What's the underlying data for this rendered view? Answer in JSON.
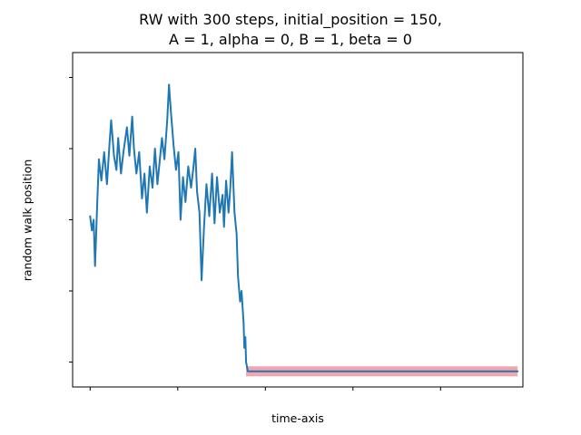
{
  "chart_data": {
    "type": "line",
    "title_lines": [
      "RW with 300 steps, initial_position = 150,",
      "A = 1, alpha = 0, B = 1, beta = 0"
    ],
    "xlabel": "time-axis",
    "ylabel": "random walk position",
    "xlim": [
      -0.5,
      12.35
    ],
    "ylim": [
      -0.35,
      4.35
    ],
    "x_ticks": [
      0,
      2.5,
      5,
      7.5,
      10
    ],
    "y_ticks": [
      0,
      1,
      2,
      3,
      4
    ],
    "tick_labels_visible": false,
    "grid": false,
    "series": [
      {
        "color": "#1f77b4",
        "values": [
          [
            0.0,
            2.05
          ],
          [
            0.05,
            1.85
          ],
          [
            0.1,
            2.0
          ],
          [
            0.14,
            1.35
          ],
          [
            0.2,
            2.2
          ],
          [
            0.25,
            2.85
          ],
          [
            0.32,
            2.55
          ],
          [
            0.4,
            2.95
          ],
          [
            0.48,
            2.5
          ],
          [
            0.55,
            3.05
          ],
          [
            0.6,
            3.4
          ],
          [
            0.68,
            2.9
          ],
          [
            0.75,
            2.7
          ],
          [
            0.8,
            3.15
          ],
          [
            0.88,
            2.65
          ],
          [
            0.95,
            2.95
          ],
          [
            1.05,
            3.3
          ],
          [
            1.12,
            2.9
          ],
          [
            1.2,
            3.45
          ],
          [
            1.25,
            3.0
          ],
          [
            1.32,
            2.65
          ],
          [
            1.4,
            2.95
          ],
          [
            1.48,
            2.3
          ],
          [
            1.55,
            2.65
          ],
          [
            1.62,
            2.1
          ],
          [
            1.7,
            2.75
          ],
          [
            1.78,
            2.45
          ],
          [
            1.85,
            3.0
          ],
          [
            1.92,
            2.5
          ],
          [
            2.0,
            2.9
          ],
          [
            2.05,
            3.15
          ],
          [
            2.12,
            2.85
          ],
          [
            2.2,
            3.4
          ],
          [
            2.25,
            3.9
          ],
          [
            2.3,
            3.55
          ],
          [
            2.38,
            3.05
          ],
          [
            2.45,
            2.7
          ],
          [
            2.52,
            2.95
          ],
          [
            2.58,
            2.0
          ],
          [
            2.65,
            2.6
          ],
          [
            2.72,
            2.25
          ],
          [
            2.8,
            2.75
          ],
          [
            2.88,
            2.45
          ],
          [
            2.95,
            2.75
          ],
          [
            3.0,
            3.0
          ],
          [
            3.05,
            2.4
          ],
          [
            3.12,
            2.1
          ],
          [
            3.18,
            1.15
          ],
          [
            3.25,
            1.9
          ],
          [
            3.32,
            2.5
          ],
          [
            3.4,
            2.05
          ],
          [
            3.48,
            2.65
          ],
          [
            3.55,
            1.95
          ],
          [
            3.62,
            2.6
          ],
          [
            3.7,
            2.1
          ],
          [
            3.78,
            2.35
          ],
          [
            3.82,
            1.9
          ],
          [
            3.88,
            2.55
          ],
          [
            3.95,
            2.1
          ],
          [
            4.0,
            2.45
          ],
          [
            4.05,
            2.95
          ],
          [
            4.12,
            2.1
          ],
          [
            4.18,
            1.8
          ],
          [
            4.22,
            1.2
          ],
          [
            4.28,
            0.85
          ],
          [
            4.32,
            1.0
          ],
          [
            4.38,
            0.55
          ],
          [
            4.4,
            0.2
          ],
          [
            4.43,
            0.35
          ],
          [
            4.45,
            0.0
          ],
          [
            4.5,
            -0.13
          ],
          [
            12.2,
            -0.13
          ]
        ]
      }
    ],
    "highlight_band": {
      "x_range": [
        4.45,
        12.2
      ],
      "y_range": [
        -0.2,
        -0.06
      ],
      "color": "#f4a6ad"
    }
  }
}
